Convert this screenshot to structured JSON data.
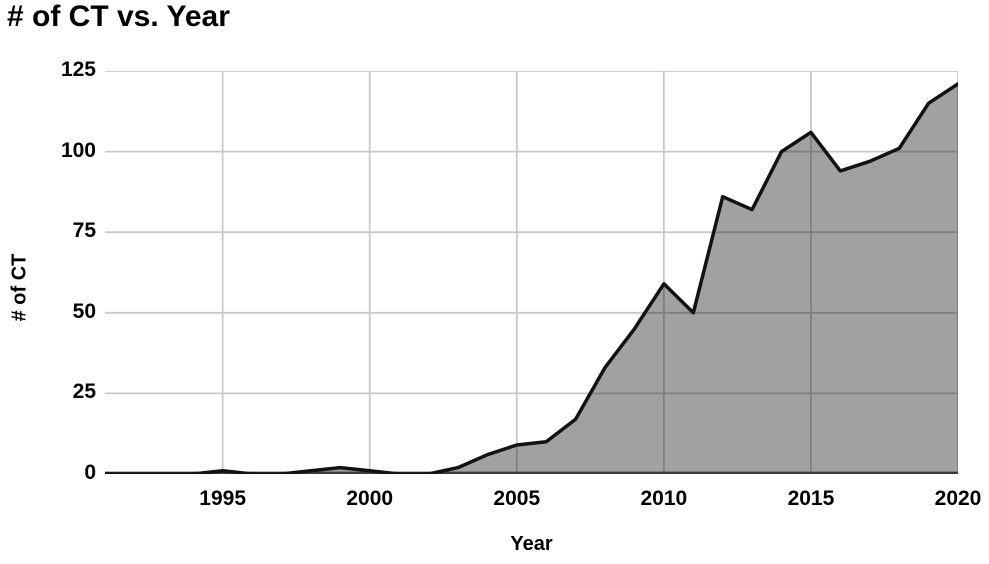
{
  "title": "# of CT vs. Year",
  "chart_data": {
    "type": "area",
    "title": "# of CT vs. Year",
    "xlabel": "Year",
    "ylabel": "# of CT",
    "x": [
      1991,
      1992,
      1993,
      1994,
      1995,
      1996,
      1997,
      1998,
      1999,
      2000,
      2001,
      2002,
      2003,
      2004,
      2005,
      2006,
      2007,
      2008,
      2009,
      2010,
      2011,
      2012,
      2013,
      2014,
      2015,
      2016,
      2017,
      2018,
      2019,
      2020
    ],
    "values": [
      0,
      0,
      0,
      0,
      1,
      0,
      0,
      1,
      2,
      1,
      0,
      0,
      2,
      6,
      9,
      10,
      17,
      33,
      45,
      59,
      50,
      86,
      82,
      100,
      106,
      94,
      97,
      101,
      115,
      121
    ],
    "xlim": [
      1991,
      2020
    ],
    "ylim": [
      0,
      125
    ],
    "x_ticks": [
      1995,
      2000,
      2005,
      2010,
      2015,
      2020
    ],
    "y_ticks": [
      0,
      25,
      50,
      75,
      100,
      125
    ],
    "grid": true,
    "legend": "none",
    "colors": {
      "area_fill": "rgba(0,0,0,0.37)",
      "line": "#121212",
      "gridline": "#c9c9c9",
      "axis_line": "#3c3c3c",
      "text": "#000000",
      "background": "#ffffff"
    }
  }
}
